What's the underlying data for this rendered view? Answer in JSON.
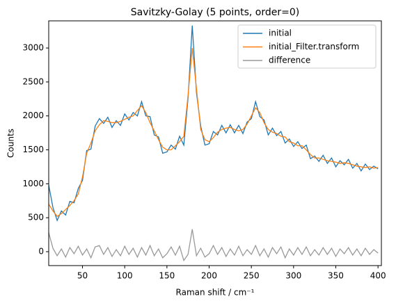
{
  "chart_data": {
    "type": "line",
    "title": "Savitzky-Golay (5 points, order=0)",
    "x_label": "Raman shift / cm⁻¹",
    "y_label": "Counts",
    "x": [
      10,
      15,
      20,
      25,
      30,
      35,
      40,
      45,
      50,
      55,
      60,
      65,
      70,
      75,
      80,
      85,
      90,
      95,
      100,
      105,
      110,
      115,
      120,
      125,
      130,
      135,
      140,
      145,
      150,
      155,
      160,
      165,
      170,
      175,
      180,
      185,
      190,
      195,
      200,
      205,
      210,
      215,
      220,
      225,
      230,
      235,
      240,
      245,
      250,
      255,
      260,
      265,
      270,
      275,
      280,
      285,
      290,
      295,
      300,
      305,
      310,
      315,
      320,
      325,
      330,
      335,
      340,
      345,
      350,
      355,
      360,
      365,
      370,
      375,
      380,
      385,
      390,
      395,
      400
    ],
    "series": [
      {
        "name": "initial",
        "color": "#1f77b4",
        "values": [
          980,
          650,
          460,
          600,
          540,
          740,
          720,
          930,
          1050,
          1490,
          1510,
          1850,
          1960,
          1890,
          1980,
          1830,
          1930,
          1860,
          2030,
          1940,
          2050,
          2000,
          2210,
          2000,
          1990,
          1720,
          1690,
          1450,
          1470,
          1570,
          1510,
          1700,
          1570,
          2260,
          3330,
          2340,
          1850,
          1570,
          1590,
          1770,
          1720,
          1860,
          1750,
          1870,
          1750,
          1860,
          1740,
          1910,
          1960,
          2210,
          1990,
          1940,
          1720,
          1820,
          1710,
          1770,
          1600,
          1660,
          1550,
          1620,
          1520,
          1570,
          1370,
          1410,
          1330,
          1420,
          1300,
          1380,
          1250,
          1340,
          1280,
          1360,
          1230,
          1300,
          1190,
          1290,
          1210,
          1260,
          1220
        ]
      },
      {
        "name": "initial_Filter.transform",
        "color": "#ff7f0e",
        "values": [
          700,
          600,
          520,
          560,
          620,
          680,
          750,
          850,
          1100,
          1450,
          1600,
          1780,
          1870,
          1930,
          1920,
          1900,
          1900,
          1920,
          1950,
          1980,
          2000,
          2080,
          2150,
          2050,
          1900,
          1780,
          1650,
          1540,
          1500,
          1500,
          1560,
          1620,
          1700,
          2300,
          3000,
          2400,
          1800,
          1650,
          1620,
          1680,
          1760,
          1800,
          1820,
          1830,
          1800,
          1780,
          1800,
          1880,
          2000,
          2120,
          2050,
          1900,
          1800,
          1760,
          1740,
          1700,
          1690,
          1620,
          1600,
          1560,
          1560,
          1500,
          1430,
          1380,
          1380,
          1360,
          1340,
          1330,
          1320,
          1300,
          1310,
          1300,
          1280,
          1260,
          1250,
          1240,
          1250,
          1230,
          1240
        ]
      },
      {
        "name": "difference",
        "color": "#999999",
        "values": [
          280,
          50,
          -60,
          40,
          -80,
          60,
          -30,
          80,
          -50,
          40,
          -90,
          70,
          90,
          -40,
          60,
          -70,
          30,
          -60,
          80,
          -40,
          50,
          -80,
          60,
          -50,
          90,
          -60,
          40,
          -90,
          -30,
          70,
          -50,
          80,
          -130,
          -40,
          330,
          -60,
          50,
          -80,
          -30,
          90,
          -40,
          60,
          -70,
          40,
          -50,
          80,
          -60,
          30,
          -40,
          90,
          -60,
          40,
          -80,
          60,
          -30,
          70,
          -90,
          40,
          -50,
          60,
          -40,
          70,
          -60,
          30,
          -50,
          60,
          -40,
          50,
          -70,
          40,
          -30,
          60,
          -50,
          40,
          -60,
          50,
          -40,
          30,
          -20
        ]
      }
    ],
    "xlim": [
      10,
      404
    ],
    "ylim": [
      -205,
      3400
    ],
    "xticks": [
      50,
      100,
      150,
      200,
      250,
      300,
      350,
      400
    ],
    "yticks": [
      0,
      500,
      1000,
      1500,
      2000,
      2500,
      3000
    ],
    "grid": false,
    "legend": "upper right"
  }
}
